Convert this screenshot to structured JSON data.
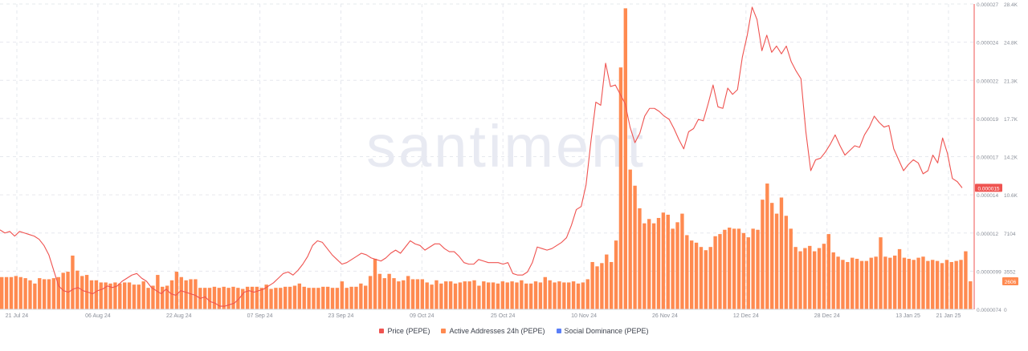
{
  "watermark": "santiment",
  "colors": {
    "price": "#ef5350",
    "addresses": "#ff8a50",
    "dominance": "#5b7ff7",
    "grid": "#e6e8ee",
    "axis_text": "#8a8f99",
    "price_axis": "#ef5350"
  },
  "legend": [
    {
      "label": "Price (PEPE)",
      "color": "#ef5350"
    },
    {
      "label": "Active Addresses 24h (PEPE)",
      "color": "#ff8a50"
    },
    {
      "label": "Social Dominance (PEPE)",
      "color": "#5b7ff7"
    }
  ],
  "chart_data": {
    "type": "bar+line",
    "x_tick_labels": [
      "21 Jul 24",
      "06 Aug 24",
      "22 Aug 24",
      "07 Sep 24",
      "23 Sep 24",
      "09 Oct 24",
      "25 Oct 24",
      "10 Nov 24",
      "26 Nov 24",
      "12 Dec 24",
      "28 Dec 24",
      "13 Jan 25",
      "21 Jan 25"
    ],
    "x_tick_days": [
      0,
      16,
      32,
      48,
      64,
      80,
      96,
      112,
      128,
      144,
      160,
      176,
      184
    ],
    "price_axis": {
      "ticks": [
        "0.000027",
        "0.000024",
        "0.000022",
        "0.000019",
        "0.000017",
        "0.000014",
        "0.000012",
        "0.0000099",
        "0.0000074"
      ],
      "min": 7.4e-06,
      "max": 2.7e-05,
      "current_label": "0.000015"
    },
    "addresses_axis": {
      "ticks": [
        "28.4K",
        "24.8K",
        "21.3K",
        "17.7K",
        "14.2K",
        "10.6K",
        "7104",
        "3552",
        "0"
      ],
      "min": 0,
      "max": 28400,
      "current_label": "2606"
    },
    "series": [
      {
        "name": "Active Addresses 24h (PEPE)",
        "type": "bar",
        "values": [
          3000,
          3000,
          3000,
          3100,
          3000,
          2900,
          2700,
          2400,
          2900,
          2800,
          2800,
          2900,
          3000,
          3400,
          3500,
          5000,
          3600,
          3100,
          3200,
          2700,
          2700,
          2500,
          2500,
          2400,
          2500,
          2400,
          2500,
          2500,
          2300,
          2300,
          2600,
          2000,
          2200,
          3200,
          2100,
          2200,
          2700,
          3500,
          3000,
          2700,
          2800,
          2800,
          2000,
          2000,
          2000,
          2100,
          2000,
          2100,
          2000,
          2100,
          2000,
          1900,
          2100,
          2100,
          2100,
          2000,
          2300,
          1900,
          2000,
          2000,
          2100,
          2100,
          2200,
          2400,
          2100,
          2000,
          2000,
          2000,
          2100,
          2100,
          2000,
          2000,
          2600,
          2000,
          2100,
          2100,
          2400,
          2200,
          3100,
          4700,
          3300,
          2900,
          3300,
          2900,
          2600,
          2700,
          3100,
          2800,
          2800,
          2800,
          2500,
          2300,
          2700,
          2400,
          2600,
          2600,
          2400,
          2500,
          2600,
          2600,
          2700,
          2200,
          2600,
          2500,
          2500,
          2400,
          2600,
          2500,
          2600,
          2500,
          2700,
          2400,
          2400,
          2600,
          2500,
          3000,
          2700,
          2500,
          2600,
          2500,
          2500,
          2600,
          2400,
          2500,
          2800,
          4400,
          4000,
          4300,
          5100,
          4400,
          6400,
          22500,
          28000,
          13000,
          11500,
          9400,
          8000,
          8400,
          8000,
          8500,
          9000,
          8800,
          7500,
          8100,
          8900,
          6900,
          6400,
          6200,
          5800,
          5500,
          5800,
          6800,
          7000,
          7400,
          7600,
          7500,
          7500,
          7100,
          6700,
          7500,
          7400,
          10200,
          11700,
          9900,
          8900,
          10400,
          8700,
          7500,
          5800,
          5400,
          5700,
          5900,
          5400,
          5700,
          6100,
          7000,
          5300,
          4900,
          4600,
          4400,
          4800,
          4700,
          4500,
          4500,
          4800,
          4900,
          6700,
          4900,
          4800,
          5000,
          5600,
          4800,
          4700,
          4600,
          4800,
          4900,
          4500,
          4600,
          4500,
          4300,
          4600,
          4400,
          4500,
          4600,
          5400,
          2606
        ]
      },
      {
        "name": "Price (PEPE)",
        "type": "line",
        "values": [
          1.25e-05,
          1.23e-05,
          1.24e-05,
          1.21e-05,
          1.24e-05,
          1.23e-05,
          1.22e-05,
          1.21e-05,
          1.19e-05,
          1.15e-05,
          1.09e-05,
          9.9e-06,
          8.9e-06,
          8.6e-06,
          8.5e-06,
          8.7e-06,
          8.8e-06,
          8.6e-06,
          8.5e-06,
          8.4e-06,
          8.6e-06,
          8.7e-06,
          8.9e-06,
          8.8e-06,
          8.9e-06,
          9.2e-06,
          9.4e-06,
          9.6e-06,
          9.7e-06,
          9.4e-06,
          9.2e-06,
          8.8e-06,
          8.6e-06,
          8.4e-06,
          8.7e-06,
          8.4e-06,
          8.3e-06,
          8.6e-06,
          8.5e-06,
          8.4e-06,
          8.3e-06,
          8.1e-06,
          8.2e-06,
          7.9e-06,
          7.8e-06,
          7.6e-06,
          7.6e-06,
          7.7e-06,
          7.8e-06,
          8.1e-06,
          8.5e-06,
          8.6e-06,
          8.5e-06,
          8.6e-06,
          8.7e-06,
          8.9e-06,
          9.1e-06,
          9.4e-06,
          9.7e-06,
          9.8e-06,
          9.6e-06,
          9.9e-06,
          1.03e-05,
          1.08e-05,
          1.15e-05,
          1.18e-05,
          1.17e-05,
          1.13e-05,
          1.09e-05,
          1.06e-05,
          1.03e-05,
          1.04e-05,
          1.06e-05,
          1.08e-05,
          1.1e-05,
          1.09e-05,
          1.07e-05,
          1.06e-05,
          1.05e-05,
          1.07e-05,
          1.1e-05,
          1.12e-05,
          1.1e-05,
          1.14e-05,
          1.18e-05,
          1.16e-05,
          1.15e-05,
          1.12e-05,
          1.14e-05,
          1.16e-05,
          1.16e-05,
          1.13e-05,
          1.11e-05,
          1.11e-05,
          1.08e-05,
          1.04e-05,
          1.03e-05,
          1.03e-05,
          1.06e-05,
          1.05e-05,
          1.04e-05,
          1.04e-05,
          1.04e-05,
          1.03e-05,
          1.04e-05,
          9.7e-06,
          9.6e-06,
          9.6e-06,
          9.8e-06,
          1.04e-05,
          1.14e-05,
          1.13e-05,
          1.12e-05,
          1.13e-05,
          1.15e-05,
          1.17e-05,
          1.2e-05,
          1.28e-05,
          1.38e-05,
          1.4e-05,
          1.54e-05,
          1.82e-05,
          2.07e-05,
          2.05e-05,
          2.32e-05,
          2.17e-05,
          2.18e-05,
          2.12e-05,
          2.06e-05,
          1.91e-05,
          1.81e-05,
          1.87e-05,
          1.98e-05,
          2.03e-05,
          2.03e-05,
          2.01e-05,
          1.98e-05,
          1.96e-05,
          1.9e-05,
          1.83e-05,
          1.77e-05,
          1.88e-05,
          1.9e-05,
          1.96e-05,
          1.95e-05,
          2.06e-05,
          2.18e-05,
          2.04e-05,
          2.03e-05,
          2.16e-05,
          2.12e-05,
          2.15e-05,
          2.36e-05,
          2.5e-05,
          2.68e-05,
          2.6e-05,
          2.4e-05,
          2.5e-05,
          2.39e-05,
          2.43e-05,
          2.38e-05,
          2.43e-05,
          2.33e-05,
          2.27e-05,
          2.22e-05,
          1.88e-05,
          1.63e-05,
          1.7e-05,
          1.71e-05,
          1.75e-05,
          1.8e-05,
          1.86e-05,
          1.79e-05,
          1.73e-05,
          1.76e-05,
          1.79e-05,
          1.78e-05,
          1.86e-05,
          1.91e-05,
          1.98e-05,
          1.94e-05,
          1.91e-05,
          1.92e-05,
          1.77e-05,
          1.7e-05,
          1.63e-05,
          1.67e-05,
          1.7e-05,
          1.68e-05,
          1.61e-05,
          1.63e-05,
          1.73e-05,
          1.68e-05,
          1.84e-05,
          1.74e-05,
          1.58e-05,
          1.56e-05,
          1.52e-05
        ]
      }
    ]
  }
}
